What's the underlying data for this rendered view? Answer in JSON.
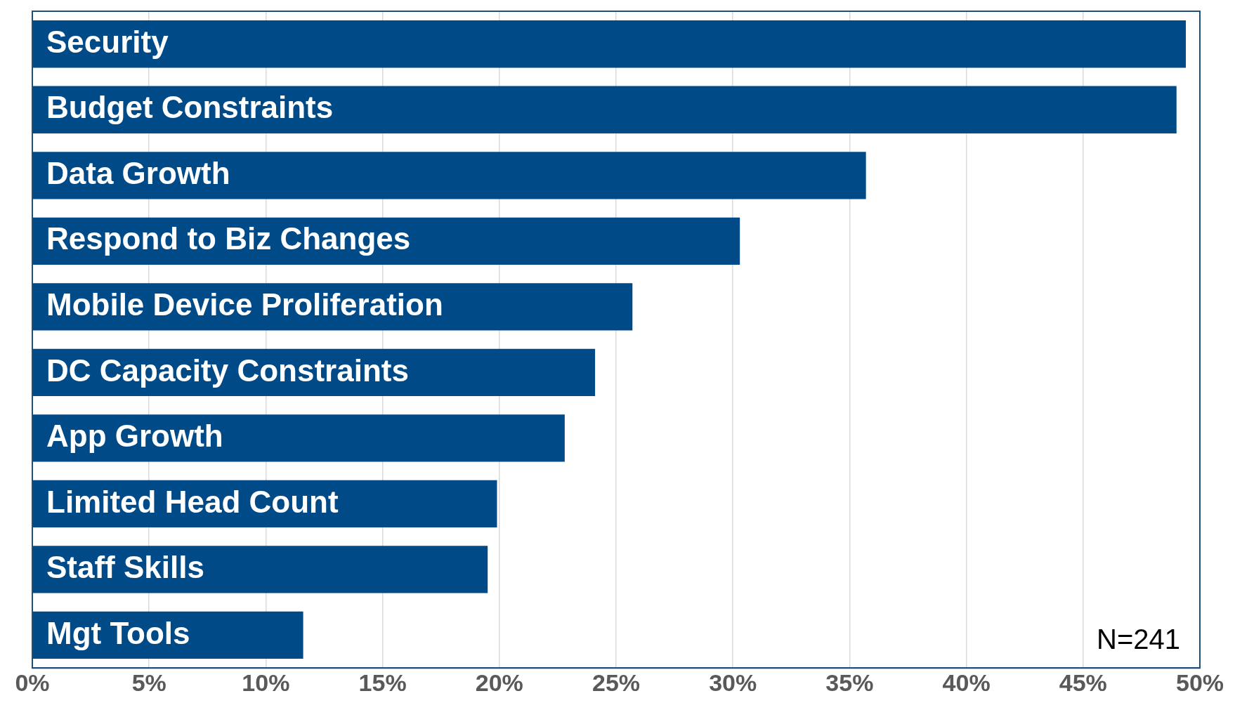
{
  "chart_data": {
    "type": "bar",
    "orientation": "horizontal",
    "categories": [
      "Security",
      "Budget Constraints",
      "Data Growth",
      "Respond to Biz Changes",
      "Mobile Device Proliferation",
      "DC Capacity Constraints",
      "App Growth",
      "Limited Head Count",
      "Staff Skills",
      "Mgt Tools"
    ],
    "values": [
      49.4,
      49.0,
      35.7,
      30.3,
      25.7,
      24.1,
      22.8,
      19.9,
      19.5,
      11.6
    ],
    "color": "#004a87",
    "xlim": [
      0,
      50
    ],
    "xticks": [
      {
        "value": 0,
        "label": "0%"
      },
      {
        "value": 5,
        "label": "5%"
      },
      {
        "value": 10,
        "label": "10%"
      },
      {
        "value": 15,
        "label": "15%"
      },
      {
        "value": 20,
        "label": "20%"
      },
      {
        "value": 25,
        "label": "25%"
      },
      {
        "value": 30,
        "label": "30%"
      },
      {
        "value": 35,
        "label": "35%"
      },
      {
        "value": 40,
        "label": "40%"
      },
      {
        "value": 45,
        "label": "45%"
      },
      {
        "value": 50,
        "label": "50%"
      }
    ],
    "grid": "x",
    "annotations": [
      "N=241"
    ]
  }
}
